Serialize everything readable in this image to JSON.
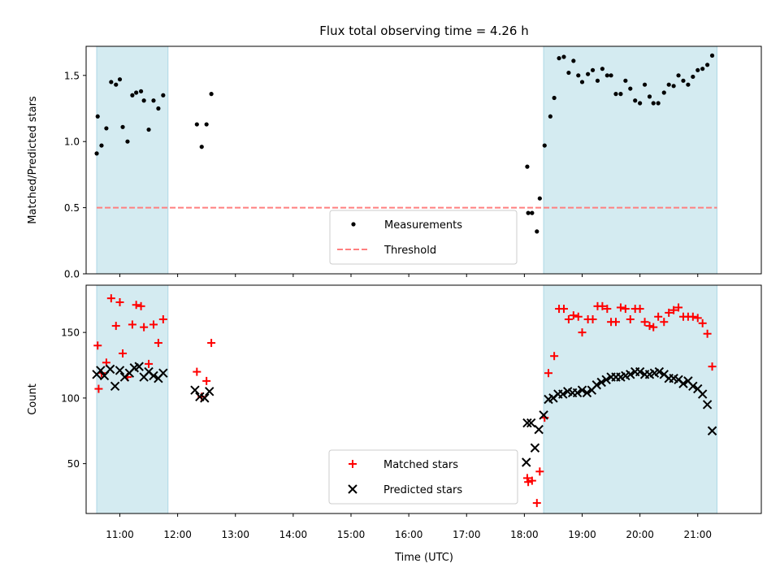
{
  "chart_data": {
    "type": "scatter",
    "title": "Flux total observing time = 4.26 h",
    "xlabel": "Time (UTC)",
    "x_ticks": [
      "11:00",
      "12:00",
      "13:00",
      "14:00",
      "15:00",
      "16:00",
      "17:00",
      "18:00",
      "19:00",
      "20:00",
      "21:00"
    ],
    "xlim": [
      "10:25",
      "22:06"
    ],
    "shaded_intervals": [
      [
        "10:36",
        "11:50"
      ],
      [
        "18:20",
        "21:20"
      ]
    ],
    "shade_color": "#d4ebf1",
    "panels": [
      {
        "ylabel": "Matched/Predicted stars",
        "ylim": [
          0,
          1.72
        ],
        "y_ticks": [
          "0.0",
          "0.5",
          "1.0",
          "1.5"
        ],
        "y_tick_values": [
          0,
          0.5,
          1.0,
          1.5
        ],
        "legend_placement": "lower-center",
        "threshold": 0.5,
        "series": [
          {
            "name": "Measurements",
            "marker": "dot",
            "color": "#000000",
            "points": [
              [
                "10:36",
                0.91
              ],
              [
                "10:37",
                1.19
              ],
              [
                "10:41",
                0.97
              ],
              [
                "10:46",
                1.1
              ],
              [
                "10:51",
                1.45
              ],
              [
                "10:56",
                1.43
              ],
              [
                "11:00",
                1.47
              ],
              [
                "11:03",
                1.11
              ],
              [
                "11:08",
                1.0
              ],
              [
                "11:13",
                1.35
              ],
              [
                "11:17",
                1.37
              ],
              [
                "11:22",
                1.38
              ],
              [
                "11:25",
                1.31
              ],
              [
                "11:30",
                1.09
              ],
              [
                "11:35",
                1.31
              ],
              [
                "11:40",
                1.25
              ],
              [
                "11:45",
                1.35
              ],
              [
                "12:20",
                1.13
              ],
              [
                "12:25",
                0.96
              ],
              [
                "12:30",
                1.13
              ],
              [
                "12:35",
                1.36
              ],
              [
                "18:03",
                0.81
              ],
              [
                "18:04",
                0.46
              ],
              [
                "18:08",
                0.46
              ],
              [
                "18:13",
                0.32
              ],
              [
                "18:16",
                0.57
              ],
              [
                "18:21",
                0.97
              ],
              [
                "18:27",
                1.19
              ],
              [
                "18:31",
                1.33
              ],
              [
                "18:36",
                1.63
              ],
              [
                "18:41",
                1.64
              ],
              [
                "18:46",
                1.52
              ],
              [
                "18:51",
                1.61
              ],
              [
                "18:56",
                1.5
              ],
              [
                "19:00",
                1.45
              ],
              [
                "19:06",
                1.51
              ],
              [
                "19:11",
                1.54
              ],
              [
                "19:16",
                1.46
              ],
              [
                "19:21",
                1.55
              ],
              [
                "19:26",
                1.5
              ],
              [
                "19:30",
                1.5
              ],
              [
                "19:35",
                1.36
              ],
              [
                "19:40",
                1.36
              ],
              [
                "19:45",
                1.46
              ],
              [
                "19:50",
                1.4
              ],
              [
                "19:55",
                1.31
              ],
              [
                "20:00",
                1.29
              ],
              [
                "20:05",
                1.43
              ],
              [
                "20:10",
                1.34
              ],
              [
                "20:14",
                1.29
              ],
              [
                "20:19",
                1.29
              ],
              [
                "20:25",
                1.37
              ],
              [
                "20:30",
                1.43
              ],
              [
                "20:35",
                1.42
              ],
              [
                "20:40",
                1.5
              ],
              [
                "20:45",
                1.46
              ],
              [
                "20:50",
                1.43
              ],
              [
                "20:55",
                1.49
              ],
              [
                "21:00",
                1.54
              ],
              [
                "21:05",
                1.55
              ],
              [
                "21:10",
                1.58
              ],
              [
                "21:15",
                1.65
              ]
            ]
          },
          {
            "name": "Threshold",
            "marker": "dashed-line",
            "color": "#ff7f7f"
          }
        ]
      },
      {
        "ylabel": "Count",
        "ylim": [
          12,
          186
        ],
        "y_ticks": [
          "50",
          "100",
          "150"
        ],
        "y_tick_values": [
          50,
          100,
          150
        ],
        "legend_placement": "lower-center",
        "series": [
          {
            "name": "Matched stars",
            "marker": "plus",
            "color": "#ff0000",
            "points": [
              [
                "10:37",
                140
              ],
              [
                "10:38",
                107
              ],
              [
                "10:41",
                119
              ],
              [
                "10:46",
                127
              ],
              [
                "10:51",
                176
              ],
              [
                "10:56",
                155
              ],
              [
                "11:00",
                173
              ],
              [
                "11:03",
                134
              ],
              [
                "11:08",
                116
              ],
              [
                "11:13",
                156
              ],
              [
                "11:17",
                171
              ],
              [
                "11:22",
                170
              ],
              [
                "11:25",
                154
              ],
              [
                "11:30",
                126
              ],
              [
                "11:35",
                156
              ],
              [
                "11:40",
                142
              ],
              [
                "11:45",
                160
              ],
              [
                "12:20",
                120
              ],
              [
                "12:25",
                101
              ],
              [
                "12:30",
                113
              ],
              [
                "12:35",
                142
              ],
              [
                "18:03",
                39
              ],
              [
                "18:04",
                36
              ],
              [
                "18:08",
                37
              ],
              [
                "18:13",
                20
              ],
              [
                "18:16",
                44
              ],
              [
                "18:21",
                85
              ],
              [
                "18:25",
                119
              ],
              [
                "18:31",
                132
              ],
              [
                "18:36",
                168
              ],
              [
                "18:41",
                168
              ],
              [
                "18:46",
                160
              ],
              [
                "18:51",
                163
              ],
              [
                "18:56",
                162
              ],
              [
                "19:00",
                150
              ],
              [
                "19:06",
                160
              ],
              [
                "19:11",
                160
              ],
              [
                "19:16",
                170
              ],
              [
                "19:21",
                170
              ],
              [
                "19:26",
                168
              ],
              [
                "19:30",
                158
              ],
              [
                "19:35",
                158
              ],
              [
                "19:40",
                169
              ],
              [
                "19:45",
                168
              ],
              [
                "19:50",
                160
              ],
              [
                "19:55",
                168
              ],
              [
                "20:00",
                168
              ],
              [
                "20:05",
                158
              ],
              [
                "20:10",
                155
              ],
              [
                "20:14",
                154
              ],
              [
                "20:19",
                162
              ],
              [
                "20:25",
                158
              ],
              [
                "20:30",
                165
              ],
              [
                "20:35",
                167
              ],
              [
                "20:40",
                169
              ],
              [
                "20:45",
                162
              ],
              [
                "20:50",
                162
              ],
              [
                "20:55",
                162
              ],
              [
                "21:00",
                161
              ],
              [
                "21:05",
                157
              ],
              [
                "21:10",
                149
              ],
              [
                "21:15",
                124
              ]
            ]
          },
          {
            "name": "Predicted stars",
            "marker": "x",
            "color": "#000000",
            "points": [
              [
                "10:36",
                118
              ],
              [
                "10:40",
                121
              ],
              [
                "10:44",
                117
              ],
              [
                "10:50",
                122
              ],
              [
                "10:55",
                109
              ],
              [
                "11:00",
                121
              ],
              [
                "11:05",
                116
              ],
              [
                "11:10",
                119
              ],
              [
                "11:15",
                123
              ],
              [
                "11:20",
                124
              ],
              [
                "11:25",
                116
              ],
              [
                "11:30",
                120
              ],
              [
                "11:35",
                117
              ],
              [
                "11:40",
                115
              ],
              [
                "11:45",
                119
              ],
              [
                "12:18",
                106
              ],
              [
                "12:23",
                101
              ],
              [
                "12:28",
                100
              ],
              [
                "12:33",
                105
              ],
              [
                "18:02",
                51
              ],
              [
                "18:03",
                81
              ],
              [
                "18:07",
                81
              ],
              [
                "18:11",
                62
              ],
              [
                "18:15",
                76
              ],
              [
                "18:20",
                87
              ],
              [
                "18:25",
                99
              ],
              [
                "18:30",
                100
              ],
              [
                "18:35",
                103
              ],
              [
                "18:40",
                103
              ],
              [
                "18:45",
                105
              ],
              [
                "18:50",
                104
              ],
              [
                "18:55",
                104
              ],
              [
                "19:00",
                106
              ],
              [
                "19:05",
                104
              ],
              [
                "19:10",
                106
              ],
              [
                "19:15",
                110
              ],
              [
                "19:20",
                112
              ],
              [
                "19:25",
                114
              ],
              [
                "19:30",
                116
              ],
              [
                "19:35",
                116
              ],
              [
                "19:40",
                116
              ],
              [
                "19:45",
                117
              ],
              [
                "19:50",
                118
              ],
              [
                "19:55",
                120
              ],
              [
                "20:00",
                120
              ],
              [
                "20:05",
                118
              ],
              [
                "20:10",
                118
              ],
              [
                "20:15",
                119
              ],
              [
                "20:20",
                120
              ],
              [
                "20:25",
                118
              ],
              [
                "20:30",
                115
              ],
              [
                "20:35",
                115
              ],
              [
                "20:40",
                114
              ],
              [
                "20:45",
                111
              ],
              [
                "20:50",
                113
              ],
              [
                "20:55",
                109
              ],
              [
                "21:00",
                107
              ],
              [
                "21:05",
                103
              ],
              [
                "21:10",
                95
              ],
              [
                "21:15",
                75
              ]
            ]
          }
        ]
      }
    ]
  }
}
